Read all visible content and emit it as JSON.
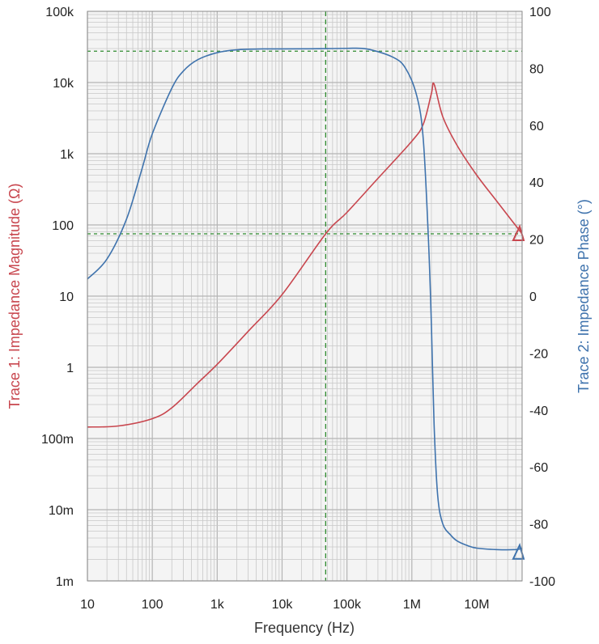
{
  "chart_data": {
    "type": "line",
    "xlabel": "Frequency (Hz)",
    "x_scale": "log",
    "xlim": [
      10,
      50000000
    ],
    "x_ticks": [
      {
        "value": 10,
        "label": "10"
      },
      {
        "value": 100,
        "label": "100"
      },
      {
        "value": 1000,
        "label": "1k"
      },
      {
        "value": 10000,
        "label": "10k"
      },
      {
        "value": 100000,
        "label": "100k"
      },
      {
        "value": 1000000,
        "label": "1M"
      },
      {
        "value": 10000000,
        "label": "10M"
      }
    ],
    "ylabel_left": "Trace 1: Impedance Magnitude (Ω)",
    "y_left_scale": "log",
    "ylim_left": [
      0.001,
      100000
    ],
    "y_left_ticks": [
      {
        "value": 0.001,
        "label": "1m"
      },
      {
        "value": 0.01,
        "label": "10m"
      },
      {
        "value": 0.1,
        "label": "100m"
      },
      {
        "value": 1,
        "label": "1"
      },
      {
        "value": 10,
        "label": "10"
      },
      {
        "value": 100,
        "label": "100"
      },
      {
        "value": 1000,
        "label": "1k"
      },
      {
        "value": 10000,
        "label": "10k"
      },
      {
        "value": 100000,
        "label": "100k"
      }
    ],
    "ylabel_right": "Trace 2: Impedance Phase (°)",
    "y_right_scale": "linear",
    "ylim_right": [
      -100,
      100
    ],
    "y_right_ticks": [
      {
        "value": -100,
        "label": "-100"
      },
      {
        "value": -80,
        "label": "-80"
      },
      {
        "value": -60,
        "label": "-60"
      },
      {
        "value": -40,
        "label": "-40"
      },
      {
        "value": -20,
        "label": "-20"
      },
      {
        "value": 0,
        "label": "0"
      },
      {
        "value": 20,
        "label": "20"
      },
      {
        "value": 40,
        "label": "40"
      },
      {
        "value": 60,
        "label": "60"
      },
      {
        "value": 80,
        "label": "80"
      },
      {
        "value": 100,
        "label": "100"
      }
    ],
    "grid": true,
    "series": [
      {
        "axis": "left",
        "color": "#c8464e",
        "x": [
          10,
          30,
          100,
          200,
          500,
          1000,
          3000,
          10000,
          47000,
          100000,
          300000,
          1000000,
          1500000,
          2000000,
          2200000,
          3000000,
          5000000,
          10000000,
          20000000,
          50000000
        ],
        "y": [
          0.145,
          0.15,
          0.19,
          0.27,
          0.6,
          1.1,
          3.2,
          10.5,
          75,
          150,
          450,
          1500,
          2600,
          7000,
          9500,
          3300,
          1300,
          500,
          220,
          75
        ]
      },
      {
        "axis": "right",
        "color": "#3f73ad",
        "x": [
          10,
          20,
          40,
          70,
          100,
          200,
          300,
          500,
          1000,
          2000,
          5000,
          10000,
          50000,
          100000,
          200000,
          500000,
          800000,
          1200000,
          1500000,
          1800000,
          2000000,
          2200000,
          2500000,
          3000000,
          4000000,
          5000000,
          7000000,
          10000000,
          20000000,
          40000000,
          50000000
        ],
        "y": [
          6,
          13,
          27,
          45,
          57,
          73,
          79,
          83,
          85.5,
          86.5,
          86.8,
          86.8,
          86.9,
          87,
          86.8,
          84,
          80,
          70,
          55,
          20,
          -10,
          -45,
          -70,
          -80,
          -84,
          -86,
          -87.5,
          -88.5,
          -89,
          -89,
          -88.5
        ]
      }
    ],
    "markers": [
      {
        "series": 0,
        "side": "right",
        "value": 75
      },
      {
        "series": 1,
        "side": "right",
        "value": -90
      }
    ],
    "cursor_lines": {
      "color": "#2e8b2e",
      "vertical_x": 47000,
      "horizontal_left_y": 75,
      "horizontal_right_y": 86
    },
    "colors": {
      "grid": "#c8c8c8",
      "plot_background": "#f4f4f4",
      "axis_text": "#222222",
      "left_title": "#c8464e",
      "right_title": "#3f73ad"
    }
  }
}
